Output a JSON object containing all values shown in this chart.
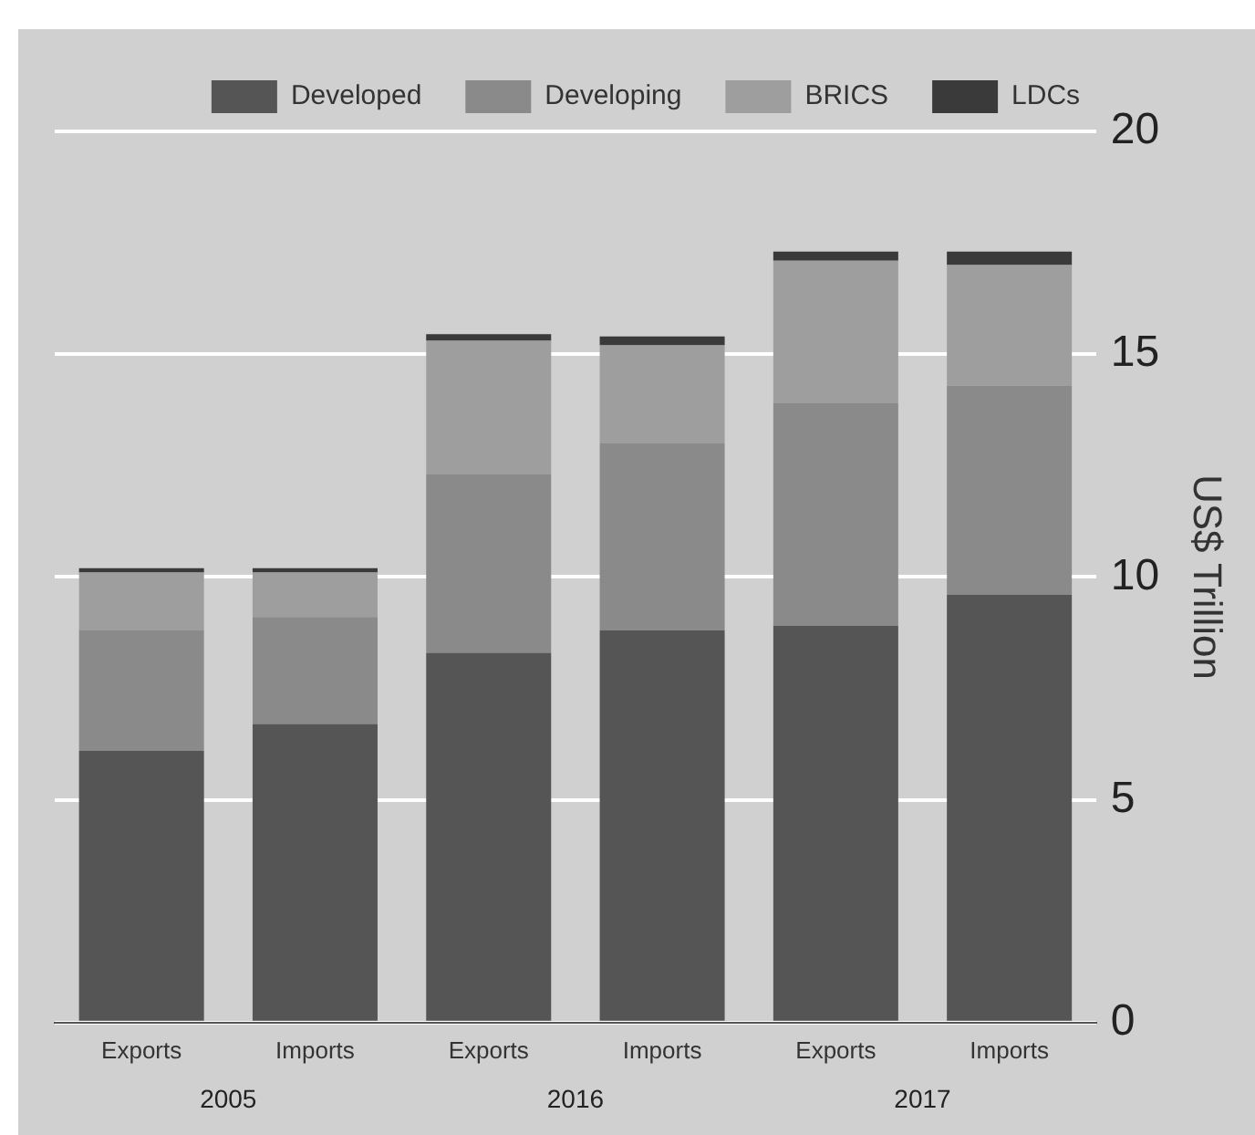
{
  "chart_data": {
    "type": "bar",
    "stacked": true,
    "ylabel": "US$ Trillion",
    "categories": [
      "Exports",
      "Imports",
      "Exports",
      "Imports",
      "Exports",
      "Imports"
    ],
    "series": [
      {
        "name": "Developed",
        "color": "#555555",
        "values": [
          6.1,
          6.7,
          8.3,
          8.8,
          8.9,
          9.6
        ]
      },
      {
        "name": "Developing",
        "color": "#8a8a8a",
        "values": [
          2.7,
          2.4,
          4.0,
          4.2,
          5.0,
          4.7
        ]
      },
      {
        "name": "BRICS",
        "color": "#9e9e9e",
        "values": [
          1.3,
          1.0,
          3.0,
          2.2,
          3.2,
          2.7
        ]
      },
      {
        "name": "LDCs",
        "color": "#3a3a3a",
        "values": [
          0.1,
          0.1,
          0.15,
          0.2,
          0.2,
          0.3
        ]
      }
    ],
    "annotations": [
      "2005",
      "2016",
      "2017"
    ],
    "ylim": [
      0,
      20
    ],
    "yticks": [
      0,
      5,
      10,
      15,
      20
    ],
    "grid": "y",
    "legend": "top"
  }
}
